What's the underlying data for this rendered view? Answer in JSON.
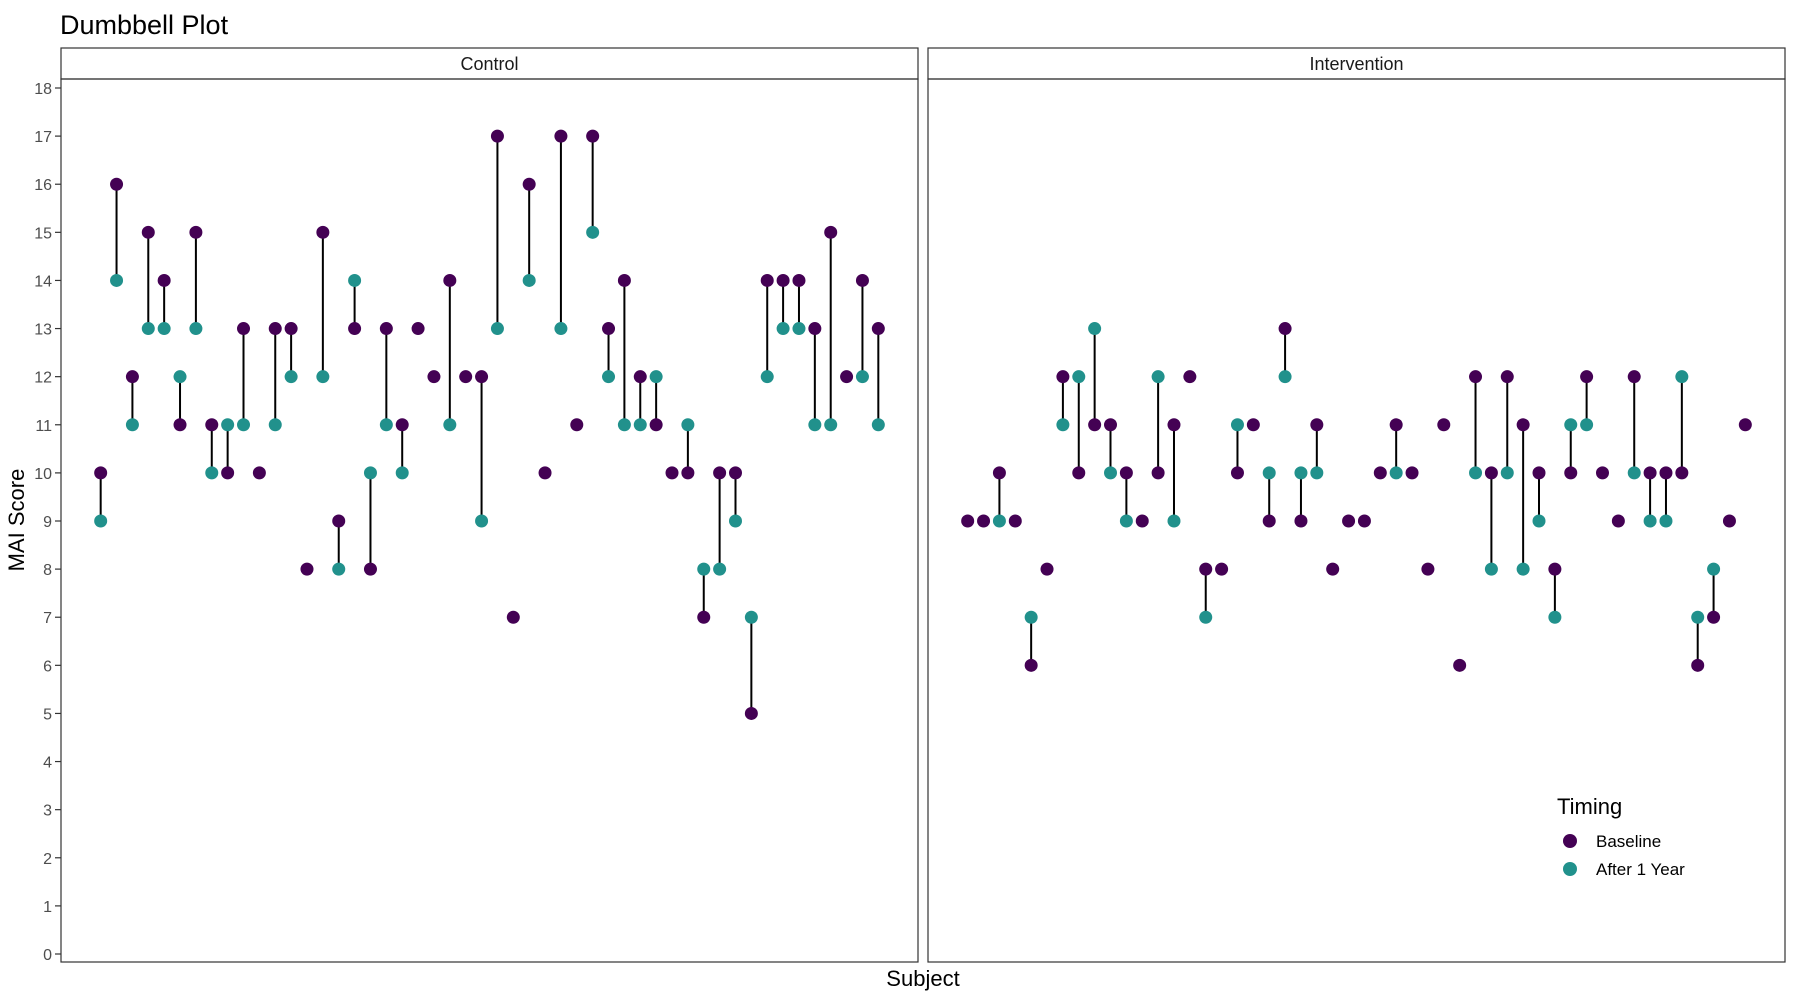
{
  "chart_data": {
    "type": "scatter",
    "subtype": "dumbbell",
    "title": "Dumbbell Plot",
    "xlabel": "Subject",
    "ylabel": "MAI Score",
    "ylim": [
      0,
      18
    ],
    "yticks": [
      0,
      1,
      2,
      3,
      4,
      5,
      6,
      7,
      8,
      9,
      10,
      11,
      12,
      13,
      14,
      15,
      16,
      17,
      18
    ],
    "grid": false,
    "legend": {
      "title": "Timing",
      "placement": "bottom-right",
      "entries": [
        {
          "label": "Baseline",
          "color": "#440154"
        },
        {
          "label": "After 1 Year",
          "color": "#21918c"
        }
      ]
    },
    "colors": {
      "baseline": "#440154",
      "after": "#21918c",
      "segment": "#000000"
    },
    "panels": [
      {
        "name": "Control",
        "x_range": [
          -1.5,
          52.5
        ],
        "subjects": [
          {
            "x": 1,
            "baseline": 10,
            "after": 9
          },
          {
            "x": 2,
            "baseline": 16,
            "after": 14
          },
          {
            "x": 3,
            "baseline": 12,
            "after": 11
          },
          {
            "x": 4,
            "baseline": 15,
            "after": 13
          },
          {
            "x": 5,
            "baseline": 14,
            "after": 13
          },
          {
            "x": 6,
            "baseline": 11,
            "after": 12
          },
          {
            "x": 7,
            "baseline": 15,
            "after": 13
          },
          {
            "x": 8,
            "baseline": 11,
            "after": 10
          },
          {
            "x": 9,
            "baseline": 10,
            "after": 11
          },
          {
            "x": 10,
            "baseline": 13,
            "after": 11
          },
          {
            "x": 11,
            "baseline": 10,
            "after": null
          },
          {
            "x": 12,
            "baseline": 13,
            "after": 11
          },
          {
            "x": 13,
            "baseline": 13,
            "after": 12
          },
          {
            "x": 14,
            "baseline": 8,
            "after": null
          },
          {
            "x": 15,
            "baseline": 15,
            "after": 12
          },
          {
            "x": 16,
            "baseline": 9,
            "after": 8
          },
          {
            "x": 17,
            "baseline": 13,
            "after": 14
          },
          {
            "x": 18,
            "baseline": 8,
            "after": 10
          },
          {
            "x": 19,
            "baseline": 13,
            "after": 11
          },
          {
            "x": 20,
            "baseline": 11,
            "after": 10
          },
          {
            "x": 21,
            "baseline": 13,
            "after": null
          },
          {
            "x": 22,
            "baseline": 12,
            "after": null
          },
          {
            "x": 23,
            "baseline": 14,
            "after": 11
          },
          {
            "x": 24,
            "baseline": 12,
            "after": null
          },
          {
            "x": 25,
            "baseline": 12,
            "after": 9
          },
          {
            "x": 26,
            "baseline": 17,
            "after": 13
          },
          {
            "x": 27,
            "baseline": 7,
            "after": null
          },
          {
            "x": 28,
            "baseline": 16,
            "after": 14
          },
          {
            "x": 29,
            "baseline": 10,
            "after": null
          },
          {
            "x": 30,
            "baseline": 17,
            "after": 13
          },
          {
            "x": 31,
            "baseline": 11,
            "after": null
          },
          {
            "x": 32,
            "baseline": 17,
            "after": 15
          },
          {
            "x": 33,
            "baseline": 13,
            "after": 12
          },
          {
            "x": 34,
            "baseline": 14,
            "after": 11
          },
          {
            "x": 35,
            "baseline": 12,
            "after": 11
          },
          {
            "x": 36,
            "baseline": 11,
            "after": 12
          },
          {
            "x": 37,
            "baseline": 10,
            "after": null
          },
          {
            "x": 38,
            "baseline": 10,
            "after": 11
          },
          {
            "x": 39,
            "baseline": 7,
            "after": 8
          },
          {
            "x": 40,
            "baseline": 10,
            "after": 8
          },
          {
            "x": 41,
            "baseline": 10,
            "after": 9
          },
          {
            "x": 42,
            "baseline": 5,
            "after": 7
          },
          {
            "x": 43,
            "baseline": 14,
            "after": 12
          },
          {
            "x": 44,
            "baseline": 14,
            "after": 13
          },
          {
            "x": 45,
            "baseline": 14,
            "after": 13
          },
          {
            "x": 46,
            "baseline": 13,
            "after": 11
          },
          {
            "x": 47,
            "baseline": 15,
            "after": 11
          },
          {
            "x": 48,
            "baseline": 12,
            "after": null
          },
          {
            "x": 49,
            "baseline": 14,
            "after": 12
          },
          {
            "x": 50,
            "baseline": 13,
            "after": 11
          }
        ]
      },
      {
        "name": "Intervention",
        "x_range": [
          -1.5,
          52.5
        ],
        "subjects": [
          {
            "x": 1,
            "baseline": 9,
            "after": null
          },
          {
            "x": 2,
            "baseline": 9,
            "after": null
          },
          {
            "x": 3,
            "baseline": 10,
            "after": 9
          },
          {
            "x": 4,
            "baseline": 9,
            "after": null
          },
          {
            "x": 5,
            "baseline": 6,
            "after": 7
          },
          {
            "x": 6,
            "baseline": 8,
            "after": null
          },
          {
            "x": 7,
            "baseline": 12,
            "after": 11
          },
          {
            "x": 8,
            "baseline": 10,
            "after": 12
          },
          {
            "x": 9,
            "baseline": 11,
            "after": 13
          },
          {
            "x": 10,
            "baseline": 11,
            "after": 10
          },
          {
            "x": 11,
            "baseline": 10,
            "after": 9
          },
          {
            "x": 12,
            "baseline": 9,
            "after": null
          },
          {
            "x": 13,
            "baseline": 10,
            "after": 12
          },
          {
            "x": 14,
            "baseline": 11,
            "after": 9
          },
          {
            "x": 15,
            "baseline": 12,
            "after": null
          },
          {
            "x": 16,
            "baseline": 8,
            "after": 7
          },
          {
            "x": 17,
            "baseline": 8,
            "after": null
          },
          {
            "x": 18,
            "baseline": 10,
            "after": 11
          },
          {
            "x": 19,
            "baseline": 11,
            "after": null
          },
          {
            "x": 20,
            "baseline": 9,
            "after": 10
          },
          {
            "x": 21,
            "baseline": 13,
            "after": 12
          },
          {
            "x": 22,
            "baseline": 9,
            "after": 10
          },
          {
            "x": 23,
            "baseline": 11,
            "after": 10
          },
          {
            "x": 24,
            "baseline": 8,
            "after": null
          },
          {
            "x": 25,
            "baseline": 9,
            "after": null
          },
          {
            "x": 26,
            "baseline": 9,
            "after": null
          },
          {
            "x": 27,
            "baseline": 10,
            "after": null
          },
          {
            "x": 28,
            "baseline": 11,
            "after": 10
          },
          {
            "x": 29,
            "baseline": 10,
            "after": null
          },
          {
            "x": 30,
            "baseline": 8,
            "after": null
          },
          {
            "x": 31,
            "baseline": 11,
            "after": null
          },
          {
            "x": 32,
            "baseline": 6,
            "after": null
          },
          {
            "x": 33,
            "baseline": 12,
            "after": 10
          },
          {
            "x": 34,
            "baseline": 10,
            "after": 8
          },
          {
            "x": 35,
            "baseline": 12,
            "after": 10
          },
          {
            "x": 36,
            "baseline": 11,
            "after": 8
          },
          {
            "x": 37,
            "baseline": 10,
            "after": 9
          },
          {
            "x": 38,
            "baseline": 8,
            "after": 7
          },
          {
            "x": 39,
            "baseline": 10,
            "after": 11
          },
          {
            "x": 40,
            "baseline": 12,
            "after": 11
          },
          {
            "x": 41,
            "baseline": 10,
            "after": null
          },
          {
            "x": 42,
            "baseline": 9,
            "after": null
          },
          {
            "x": 43,
            "baseline": 12,
            "after": 10
          },
          {
            "x": 44,
            "baseline": 10,
            "after": 9
          },
          {
            "x": 45,
            "baseline": 10,
            "after": 9
          },
          {
            "x": 46,
            "baseline": 10,
            "after": 12
          },
          {
            "x": 47,
            "baseline": 6,
            "after": 7
          },
          {
            "x": 48,
            "baseline": 7,
            "after": 8
          },
          {
            "x": 49,
            "baseline": 9,
            "after": null
          },
          {
            "x": 50,
            "baseline": 11,
            "after": null
          }
        ]
      }
    ]
  }
}
